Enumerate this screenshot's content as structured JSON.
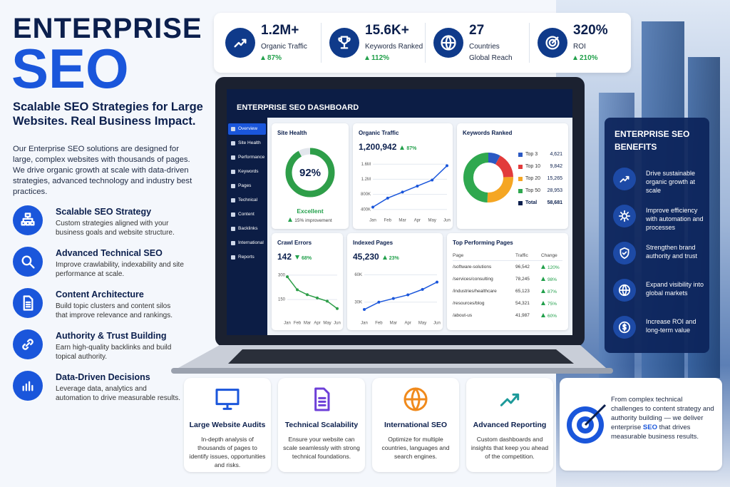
{
  "header": {
    "title": "ENTERPRISE",
    "title_accent": "SEO",
    "subtitle": "Scalable SEO Strategies for Large Websites. Real Business Impact.",
    "intro": "Our Enterprise SEO solutions are designed for large, complex websites with thousands of pages. We drive organic growth at scale with data-driven strategies, advanced technology and industry best practices."
  },
  "features": [
    {
      "title": "Scalable SEO Strategy",
      "text": "Custom strategies aligned with your business goals and website structure."
    },
    {
      "title": "Advanced Technical SEO",
      "text": "Improve crawlability, indexability and site performance at scale."
    },
    {
      "title": "Content Architecture",
      "text": "Build topic clusters and content silos that improve relevance and rankings."
    },
    {
      "title": "Authority & Trust Building",
      "text": "Earn high-quality backlinks and build topical authority."
    },
    {
      "title": "Data-Driven Decisions",
      "text": "Leverage data, analytics and automation to drive measurable results."
    }
  ],
  "stats": [
    {
      "value": "1.2M+",
      "label": "Organic Traffic",
      "change": "87%"
    },
    {
      "value": "15.6K+",
      "label": "Keywords Ranked",
      "change": "112%"
    },
    {
      "value": "27",
      "label": "Countries",
      "note": "Global Reach"
    },
    {
      "value": "320%",
      "label": "ROI",
      "change": "210%"
    }
  ],
  "dashboard": {
    "title": "ENTERPRISE SEO DASHBOARD",
    "nav": [
      "Overview",
      "Site Health",
      "Performance",
      "Keywords",
      "Pages",
      "Technical",
      "Content",
      "Backlinks",
      "International",
      "Reports"
    ],
    "site_health": {
      "title": "Site Health",
      "value": 92,
      "value_label": "92%",
      "status": "Excellent",
      "change": "15% improvement"
    },
    "organic_traffic": {
      "title": "Organic Traffic",
      "total": "1,200,942",
      "change": "87%",
      "categories": [
        "Jan",
        "Feb",
        "Mar",
        "Apr",
        "May",
        "Jun"
      ],
      "values": [
        460000,
        700000,
        860000,
        1020000,
        1180000,
        1560000
      ],
      "ylim": [
        300000,
        1700000
      ],
      "yticks": [
        {
          "value": 400000,
          "label": "400K"
        },
        {
          "value": 800000,
          "label": "800K"
        },
        {
          "value": 1200000,
          "label": "1.2M"
        },
        {
          "value": 1600000,
          "label": "1.6M"
        }
      ]
    },
    "keywords": {
      "title": "Keywords Ranked",
      "segments": [
        {
          "name": "Top 3",
          "value": 4621,
          "value_label": "4,621",
          "color": "#2b59c3"
        },
        {
          "name": "Top 10",
          "value": 9842,
          "value_label": "9,842",
          "color": "#e23b3b"
        },
        {
          "name": "Top 20",
          "value": 15265,
          "value_label": "15,265",
          "color": "#f5a623"
        },
        {
          "name": "Top 50",
          "value": 28953,
          "value_label": "28,953",
          "color": "#2fa84f"
        }
      ],
      "total": {
        "name": "Total",
        "value_label": "58,681"
      }
    },
    "crawl_errors": {
      "title": "Crawl Errors",
      "total": "142",
      "change": "68%",
      "categories": [
        "Jan",
        "Feb",
        "Mar",
        "Apr",
        "May",
        "Jun"
      ],
      "values": [
        290,
        210,
        180,
        160,
        140,
        95
      ],
      "ylim": [
        50,
        330
      ],
      "yticks": [
        150,
        300
      ]
    },
    "indexed_pages": {
      "title": "Indexed Pages",
      "total": "45,230",
      "change": "23%",
      "categories": [
        "Jan",
        "Feb",
        "Mar",
        "Apr",
        "May",
        "Jun"
      ],
      "values": [
        22000,
        30000,
        34000,
        38000,
        44000,
        52000
      ],
      "ylim": [
        15000,
        65000
      ],
      "yticks": [
        {
          "value": 30000,
          "label": "30K"
        },
        {
          "value": 60000,
          "label": "60K"
        }
      ]
    },
    "top_pages": {
      "title": "Top Performing Pages",
      "columns": [
        "Page",
        "Traffic",
        "Change"
      ],
      "rows": [
        [
          "/software-solutions",
          "96,542",
          "120%"
        ],
        [
          "/services/consulting",
          "78,245",
          "98%"
        ],
        [
          "/industries/healthcare",
          "65,123",
          "87%"
        ],
        [
          "/resources/blog",
          "54,321",
          "75%"
        ],
        [
          "/about-us",
          "41,987",
          "60%"
        ]
      ]
    }
  },
  "benefits": {
    "title": "ENTERPRISE SEO BENEFITS",
    "items": [
      "Drive sustainable organic growth at scale",
      "Improve efficiency with automation and processes",
      "Strengthen brand authority and trust",
      "Expand visibility into global markets",
      "Increase ROI and long-term value"
    ]
  },
  "services": [
    {
      "title": "Large Website Audits",
      "text": "In-depth analysis of thousands of pages to identify issues, opportunities and risks."
    },
    {
      "title": "Technical Scalability",
      "text": "Ensure your website can scale seamlessly with strong technical foundations."
    },
    {
      "title": "International SEO",
      "text": "Optimize for multiple countries, languages and search engines."
    },
    {
      "title": "Advanced Reporting",
      "text": "Custom dashboards and insights that keep you ahead of the competition."
    }
  ],
  "closing": {
    "before": "From complex technical challenges to content strategy and authority building — we deliver enterprise",
    "highlight": "SEO",
    "after": "that drives measurable business results."
  }
}
